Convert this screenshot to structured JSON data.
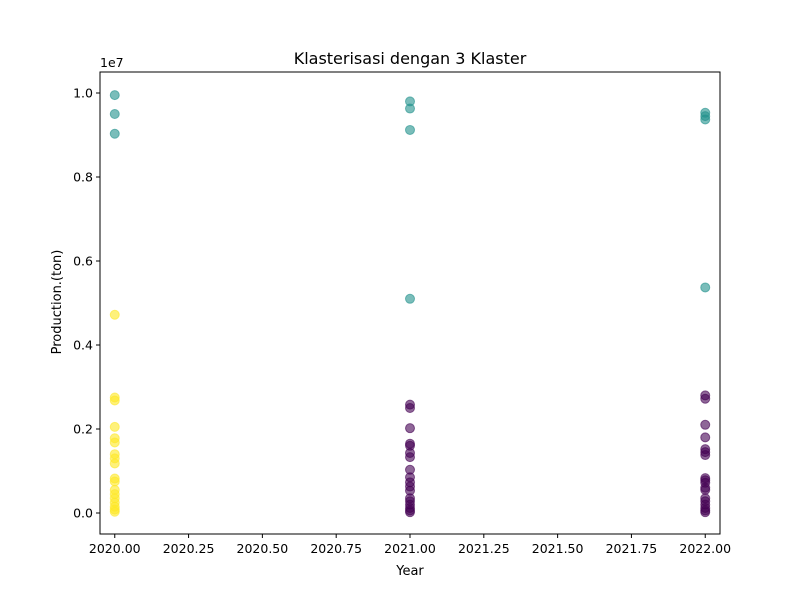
{
  "chart_data": {
    "type": "scatter",
    "title": "Klasterisasi dengan 3 Klaster",
    "xlabel": "Year",
    "ylabel": "Production.(ton)",
    "y_offset_label": "1e7",
    "xlim": [
      2019.95,
      2022.05
    ],
    "ylim": [
      -0.05,
      1.05
    ],
    "x_ticks": [
      2020.0,
      2020.25,
      2020.5,
      2020.75,
      2021.0,
      2021.25,
      2021.5,
      2021.75,
      2022.0
    ],
    "x_tick_labels": [
      "2020.00",
      "2020.25",
      "2020.50",
      "2020.75",
      "2021.00",
      "2021.25",
      "2021.50",
      "2021.75",
      "2022.00"
    ],
    "y_ticks": [
      0.0,
      0.2,
      0.4,
      0.6,
      0.8,
      1.0
    ],
    "y_tick_labels": [
      "0.0",
      "0.2",
      "0.4",
      "0.6",
      "0.8",
      "1.0"
    ],
    "grid": false,
    "legend": "none",
    "colors": {
      "cluster_0": "#440154",
      "cluster_1": "#21918c",
      "cluster_2": "#fde725"
    },
    "series": [
      {
        "color_key": "cluster_1",
        "points": [
          [
            2020,
            0.995
          ],
          [
            2020,
            0.95
          ],
          [
            2020,
            0.903
          ],
          [
            2021,
            0.98
          ],
          [
            2021,
            0.963
          ],
          [
            2021,
            0.912
          ],
          [
            2021,
            0.51
          ],
          [
            2022,
            0.953
          ],
          [
            2022,
            0.945
          ],
          [
            2022,
            0.937
          ],
          [
            2022,
            0.537
          ]
        ]
      },
      {
        "color_key": "cluster_2",
        "points": [
          [
            2020,
            0.472
          ],
          [
            2020,
            0.275
          ],
          [
            2020,
            0.268
          ],
          [
            2020,
            0.205
          ],
          [
            2020,
            0.178
          ],
          [
            2020,
            0.168
          ],
          [
            2020,
            0.14
          ],
          [
            2020,
            0.13
          ],
          [
            2020,
            0.118
          ],
          [
            2020,
            0.082
          ],
          [
            2020,
            0.075
          ],
          [
            2020,
            0.055
          ],
          [
            2020,
            0.045
          ],
          [
            2020,
            0.035
          ],
          [
            2020,
            0.025
          ],
          [
            2020,
            0.015
          ],
          [
            2020,
            0.008
          ],
          [
            2020,
            0.003
          ]
        ]
      },
      {
        "color_key": "cluster_0",
        "points": [
          [
            2021,
            0.258
          ],
          [
            2021,
            0.25
          ],
          [
            2021,
            0.202
          ],
          [
            2021,
            0.165
          ],
          [
            2021,
            0.16
          ],
          [
            2021,
            0.143
          ],
          [
            2021,
            0.133
          ],
          [
            2021,
            0.103
          ],
          [
            2021,
            0.085
          ],
          [
            2021,
            0.073
          ],
          [
            2021,
            0.063
          ],
          [
            2021,
            0.053
          ],
          [
            2021,
            0.035
          ],
          [
            2021,
            0.028
          ],
          [
            2021,
            0.02
          ],
          [
            2021,
            0.012
          ],
          [
            2021,
            0.006
          ],
          [
            2021,
            0.002
          ],
          [
            2022,
            0.28
          ],
          [
            2022,
            0.272
          ],
          [
            2022,
            0.21
          ],
          [
            2022,
            0.18
          ],
          [
            2022,
            0.152
          ],
          [
            2022,
            0.145
          ],
          [
            2022,
            0.138
          ],
          [
            2022,
            0.083
          ],
          [
            2022,
            0.078
          ],
          [
            2022,
            0.072
          ],
          [
            2022,
            0.06
          ],
          [
            2022,
            0.055
          ],
          [
            2022,
            0.035
          ],
          [
            2022,
            0.028
          ],
          [
            2022,
            0.02
          ],
          [
            2022,
            0.012
          ],
          [
            2022,
            0.006
          ],
          [
            2022,
            0.002
          ]
        ]
      }
    ]
  }
}
